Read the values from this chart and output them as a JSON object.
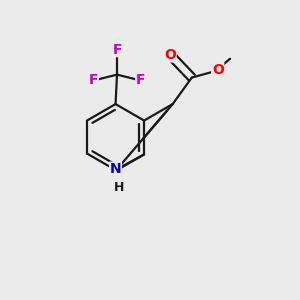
{
  "bg_color": "#ebebeb",
  "bond_color": "#1a1a1a",
  "bond_width": 1.6,
  "atom_colors": {
    "F": "#cc00cc",
    "O": "#ff0000",
    "N": "#0000bb",
    "C": "#1a1a1a"
  },
  "font_size_atom": 11,
  "fig_size": [
    3.0,
    3.0
  ],
  "dpi": 100,
  "xlim": [
    0,
    10
  ],
  "ylim": [
    0,
    10
  ]
}
